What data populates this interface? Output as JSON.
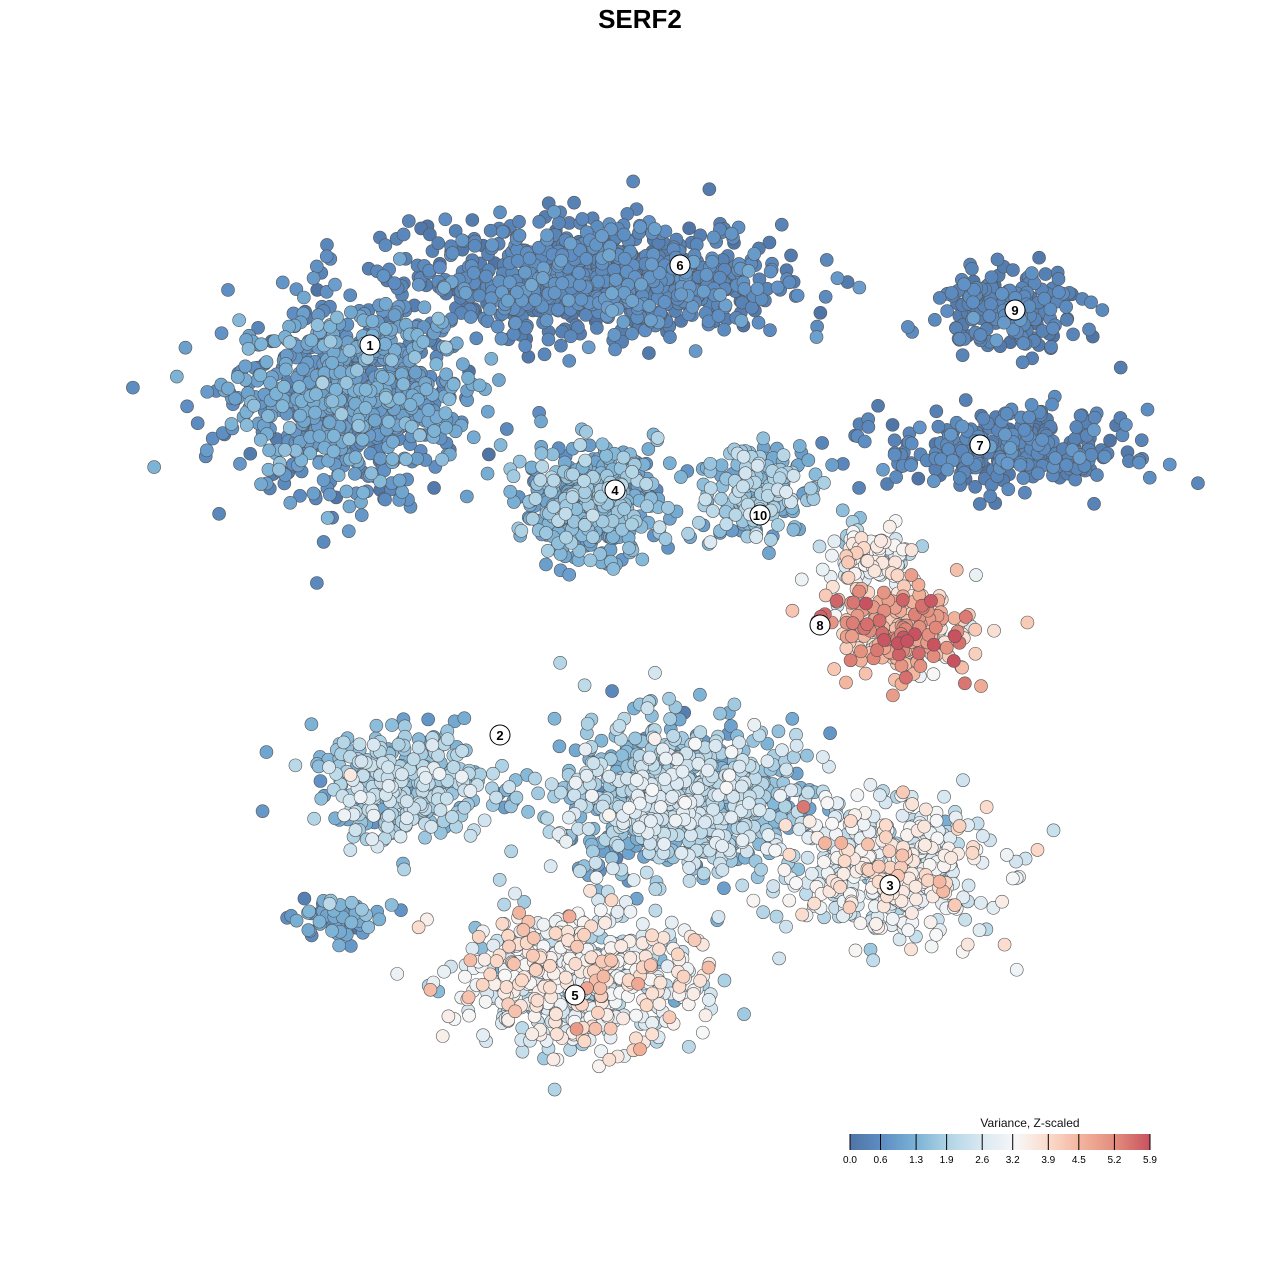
{
  "chart_data": {
    "type": "scatter",
    "title": "SERF2",
    "xlabel": "",
    "ylabel": "",
    "xlim": [
      -9,
      10
    ],
    "ylim": [
      -11,
      10
    ],
    "grid": false,
    "legend": {
      "title": "Variance, Z-scaled",
      "placement": "bottom-right",
      "ticks": [
        "0.0",
        "0.6",
        "1.3",
        "1.9",
        "2.6",
        "3.2",
        "3.9",
        "4.5",
        "5.2",
        "5.9"
      ],
      "range": [
        0,
        5.9
      ],
      "colors": [
        "#4f74a6",
        "#5e8fc4",
        "#7cb3d6",
        "#b3d5e6",
        "#dbe9f2",
        "#f7f7f7",
        "#fbd9c9",
        "#f2b19a",
        "#e28a7b",
        "#c8525f"
      ]
    },
    "clusters": [
      {
        "label": "1",
        "x": -5.8,
        "y": 4.9,
        "sx": 2.1,
        "sy": 1.7,
        "n": 900,
        "mean": 0.8,
        "sd": 0.35
      },
      {
        "label": "6",
        "x": -0.8,
        "y": 7.2,
        "sx": 3.3,
        "sy": 1.0,
        "n": 900,
        "mean": 0.45,
        "sd": 0.25
      },
      {
        "label": "9",
        "x": 7.4,
        "y": 6.6,
        "sx": 1.3,
        "sy": 0.7,
        "n": 220,
        "mean": 0.35,
        "sd": 0.2
      },
      {
        "label": "7",
        "x": 7.3,
        "y": 3.8,
        "sx": 2.2,
        "sy": 0.7,
        "n": 320,
        "mean": 0.4,
        "sd": 0.2
      },
      {
        "label": "4",
        "x": -1.0,
        "y": 2.8,
        "sx": 1.2,
        "sy": 1.0,
        "n": 450,
        "mean": 1.2,
        "sd": 0.4
      },
      {
        "label": "10",
        "x": 2.4,
        "y": 3.0,
        "sx": 1.1,
        "sy": 0.9,
        "n": 200,
        "mean": 1.6,
        "sd": 0.5
      },
      {
        "label": "8",
        "x": 5.2,
        "y": 0.2,
        "sx": 1.3,
        "sy": 0.8,
        "n": 260,
        "mean": 4.4,
        "sd": 0.7
      },
      {
        "label": "2",
        "x": -4.8,
        "y": -2.9,
        "sx": 1.6,
        "sy": 1.0,
        "n": 330,
        "mean": 1.8,
        "sd": 0.5
      },
      {
        "label": "3",
        "x": 5.0,
        "y": -4.6,
        "sx": 1.8,
        "sy": 1.2,
        "n": 480,
        "mean": 2.9,
        "sd": 0.6
      },
      {
        "label": "5",
        "x": -1.3,
        "y": -6.8,
        "sx": 2.2,
        "sy": 1.2,
        "n": 600,
        "mean": 3.0,
        "sd": 0.7
      },
      {
        "label": "",
        "x": 0.8,
        "y": -3.2,
        "sx": 2.2,
        "sy": 1.4,
        "n": 900,
        "mean": 1.8,
        "sd": 0.6
      },
      {
        "label": "",
        "x": -6.0,
        "y": -5.6,
        "sx": 0.8,
        "sy": 0.4,
        "n": 60,
        "mean": 1.0,
        "sd": 0.4
      },
      {
        "label": "",
        "x": 4.6,
        "y": 1.6,
        "sx": 0.9,
        "sy": 0.6,
        "n": 120,
        "mean": 3.0,
        "sd": 0.5
      }
    ],
    "cluster_labels": [
      {
        "text": "1",
        "x": -5.4,
        "y": 5.9
      },
      {
        "text": "6",
        "x": 0.8,
        "y": 7.5
      },
      {
        "text": "9",
        "x": 7.5,
        "y": 6.6
      },
      {
        "text": "7",
        "x": 6.8,
        "y": 3.9
      },
      {
        "text": "4",
        "x": -0.5,
        "y": 3.0
      },
      {
        "text": "10",
        "x": 2.4,
        "y": 2.5
      },
      {
        "text": "8",
        "x": 3.6,
        "y": 0.3
      },
      {
        "text": "2",
        "x": -2.8,
        "y": -1.9
      },
      {
        "text": "3",
        "x": 5.0,
        "y": -4.9
      },
      {
        "text": "5",
        "x": -1.3,
        "y": -7.1
      }
    ]
  }
}
